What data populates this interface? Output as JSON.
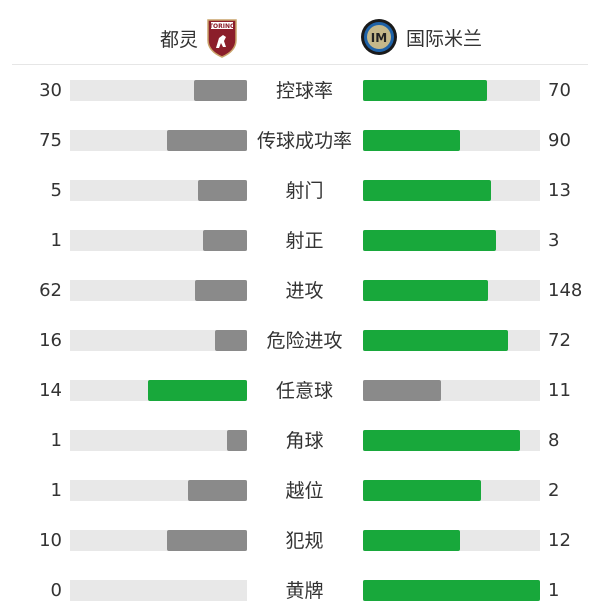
{
  "home": {
    "name": "都灵",
    "logo_text": "TORINO FC"
  },
  "away": {
    "name": "国际米兰",
    "logo_text": "IM"
  },
  "colors": {
    "leader": "#18a83b",
    "trailer": "#8a8a8a",
    "track": "#e8e8e8"
  },
  "stats": [
    {
      "label": "控球率",
      "home": "30",
      "away": "70",
      "h": 30,
      "a": 70
    },
    {
      "label": "传球成功率",
      "home": "75",
      "away": "90",
      "h": 75,
      "a": 90
    },
    {
      "label": "射门",
      "home": "5",
      "away": "13",
      "h": 5,
      "a": 13
    },
    {
      "label": "射正",
      "home": "1",
      "away": "3",
      "h": 1,
      "a": 3
    },
    {
      "label": "进攻",
      "home": "62",
      "away": "148",
      "h": 62,
      "a": 148
    },
    {
      "label": "危险进攻",
      "home": "16",
      "away": "72",
      "h": 16,
      "a": 72
    },
    {
      "label": "任意球",
      "home": "14",
      "away": "11",
      "h": 14,
      "a": 11
    },
    {
      "label": "角球",
      "home": "1",
      "away": "8",
      "h": 1,
      "a": 8
    },
    {
      "label": "越位",
      "home": "1",
      "away": "2",
      "h": 1,
      "a": 2
    },
    {
      "label": "犯规",
      "home": "10",
      "away": "12",
      "h": 10,
      "a": 12
    },
    {
      "label": "黄牌",
      "home": "0",
      "away": "1",
      "h": 0,
      "a": 1
    }
  ]
}
